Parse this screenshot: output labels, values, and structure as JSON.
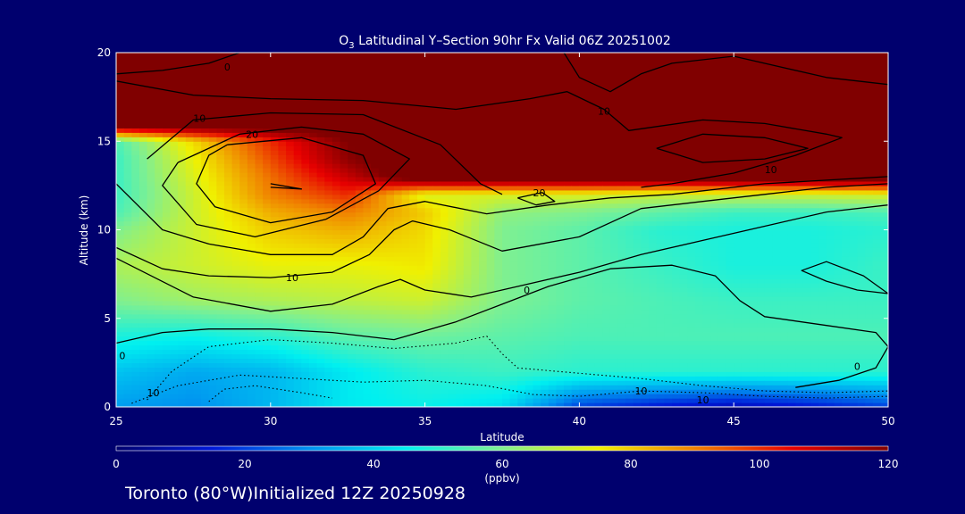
{
  "chart_data": {
    "type": "heatmap",
    "title_prefix": "O",
    "title_subscript": "3",
    "title_rest": " Latitudinal Y–Section 90hr  Fx Valid 06Z 20251002",
    "xlabel": "Latitude",
    "ylabel": "Altitude (km)",
    "xlim": [
      25,
      50
    ],
    "ylim": [
      0,
      20
    ],
    "x_ticks": [
      25,
      30,
      35,
      40,
      45,
      50
    ],
    "y_ticks": [
      0,
      5,
      10,
      15,
      20
    ],
    "grid": false,
    "colorbar": {
      "label": "(ppbv)",
      "range": [
        0,
        120
      ],
      "ticks": [
        0,
        20,
        40,
        60,
        80,
        100,
        120
      ],
      "colors": [
        "#00006e",
        "#0018d8",
        "#0090f0",
        "#00f0f0",
        "#80f090",
        "#f0f000",
        "#f08000",
        "#e80000",
        "#800000"
      ]
    },
    "field": {
      "x": [
        25,
        27.5,
        30,
        32.5,
        35,
        37.5,
        40,
        42.5,
        45,
        47.5,
        50
      ],
      "y": [
        0,
        2,
        4,
        6,
        8,
        10,
        11,
        12,
        13,
        14,
        15,
        16,
        18,
        20
      ],
      "z": [
        [
          32,
          30,
          36,
          44,
          46,
          42,
          20,
          14,
          10,
          14,
          20
        ],
        [
          38,
          34,
          36,
          44,
          50,
          52,
          50,
          50,
          50,
          50,
          50
        ],
        [
          48,
          46,
          50,
          56,
          58,
          56,
          54,
          54,
          54,
          54,
          54
        ],
        [
          60,
          64,
          66,
          68,
          70,
          60,
          56,
          54,
          52,
          52,
          52
        ],
        [
          66,
          70,
          74,
          74,
          76,
          60,
          56,
          52,
          48,
          48,
          52
        ],
        [
          60,
          70,
          80,
          84,
          78,
          60,
          56,
          50,
          48,
          48,
          50
        ],
        [
          54,
          70,
          84,
          90,
          80,
          62,
          60,
          56,
          52,
          52,
          54
        ],
        [
          52,
          70,
          90,
          100,
          72,
          72,
          72,
          70,
          70,
          70,
          72
        ],
        [
          52,
          72,
          92,
          110,
          130,
          130,
          130,
          130,
          130,
          130,
          130
        ],
        [
          52,
          74,
          96,
          118,
          130,
          130,
          130,
          130,
          130,
          130,
          130
        ],
        [
          54,
          78,
          100,
          120,
          130,
          130,
          130,
          130,
          130,
          130,
          130
        ],
        [
          130,
          130,
          130,
          130,
          130,
          130,
          130,
          130,
          130,
          130,
          130
        ],
        [
          130,
          130,
          130,
          130,
          130,
          130,
          130,
          130,
          130,
          130,
          130
        ],
        [
          130,
          130,
          130,
          130,
          130,
          130,
          130,
          130,
          130,
          130,
          130
        ]
      ]
    },
    "contours": [
      {
        "label": "20",
        "style": "solid",
        "points": [
          [
            30.0,
            12.4
          ],
          [
            31.0,
            12.3
          ],
          [
            30.0,
            12.6
          ]
        ]
      },
      {
        "label": "20",
        "style": "solid",
        "points": [
          [
            28.6,
            14.8
          ],
          [
            31.0,
            15.2
          ],
          [
            33.0,
            14.2
          ],
          [
            33.4,
            12.6
          ],
          [
            32.0,
            11.0
          ],
          [
            30.0,
            10.4
          ],
          [
            28.2,
            11.3
          ],
          [
            27.6,
            12.6
          ],
          [
            28.0,
            14.2
          ],
          [
            28.6,
            14.8
          ]
        ]
      },
      {
        "label": "20",
        "style": "solid",
        "points": [
          [
            38.0,
            11.8
          ],
          [
            38.6,
            11.4
          ],
          [
            39.2,
            11.6
          ],
          [
            38.8,
            12.1
          ],
          [
            38.0,
            11.8
          ]
        ]
      },
      {
        "label": "10",
        "style": "solid",
        "points": [
          [
            27.0,
            13.8
          ],
          [
            29.0,
            15.4
          ],
          [
            31.0,
            15.8
          ],
          [
            33.0,
            15.4
          ],
          [
            34.5,
            14.0
          ],
          [
            33.5,
            12.2
          ],
          [
            31.8,
            10.6
          ],
          [
            29.5,
            9.6
          ],
          [
            27.6,
            10.3
          ],
          [
            26.5,
            12.5
          ],
          [
            27.0,
            13.8
          ]
        ]
      },
      {
        "label": "10",
        "style": "solid",
        "points": [
          [
            26.0,
            14.0
          ],
          [
            27.5,
            16.2
          ],
          [
            30.0,
            16.6
          ],
          [
            33.0,
            16.5
          ],
          [
            35.5,
            14.8
          ],
          [
            36.8,
            12.6
          ],
          [
            37.5,
            12.0
          ]
        ]
      },
      {
        "label": "10",
        "style": "solid",
        "points": [
          [
            25.0,
            9.0
          ],
          [
            26.5,
            7.8
          ],
          [
            28.0,
            7.4
          ],
          [
            30.0,
            7.3
          ],
          [
            32.0,
            7.6
          ],
          [
            33.2,
            8.6
          ],
          [
            34.0,
            10.0
          ],
          [
            34.6,
            10.5
          ],
          [
            35.8,
            10.0
          ],
          [
            37.5,
            8.8
          ],
          [
            40.0,
            9.6
          ],
          [
            42.0,
            11.2
          ],
          [
            44.0,
            11.6
          ],
          [
            46.0,
            12.0
          ],
          [
            48.0,
            12.4
          ],
          [
            50.0,
            12.6
          ]
        ]
      },
      {
        "label": "10",
        "style": "solid",
        "points": [
          [
            25.0,
            8.4
          ],
          [
            27.5,
            6.2
          ],
          [
            30.0,
            5.4
          ],
          [
            32.0,
            5.8
          ],
          [
            33.5,
            6.8
          ],
          [
            34.2,
            7.2
          ],
          [
            35.0,
            6.6
          ],
          [
            36.5,
            6.2
          ],
          [
            38.0,
            6.8
          ],
          [
            40.0,
            7.6
          ],
          [
            42.0,
            8.6
          ],
          [
            44.0,
            9.4
          ],
          [
            46.0,
            10.2
          ],
          [
            48.0,
            11.0
          ],
          [
            50.0,
            11.4
          ]
        ]
      },
      {
        "label": "10",
        "style": "solid",
        "points": [
          [
            25.0,
            12.6
          ],
          [
            26.5,
            10.0
          ],
          [
            28.0,
            9.2
          ],
          [
            30.0,
            8.6
          ],
          [
            32.0,
            8.6
          ],
          [
            33.0,
            9.6
          ],
          [
            33.8,
            11.2
          ],
          [
            35.0,
            11.6
          ],
          [
            37.0,
            10.9
          ],
          [
            39.0,
            11.4
          ],
          [
            41.0,
            11.8
          ],
          [
            43.0,
            12.0
          ],
          [
            46.0,
            12.6
          ],
          [
            48.0,
            12.8
          ],
          [
            50.0,
            13.0
          ]
        ]
      },
      {
        "label": "10",
        "style": "solid",
        "points": [
          [
            42.5,
            14.6
          ],
          [
            44.0,
            15.4
          ],
          [
            46.0,
            15.2
          ],
          [
            47.4,
            14.6
          ],
          [
            46.0,
            14.0
          ],
          [
            44.0,
            13.8
          ],
          [
            42.5,
            14.6
          ]
        ]
      },
      {
        "label": "10",
        "style": "solid",
        "points": [
          [
            25.0,
            18.4
          ],
          [
            27.5,
            17.6
          ],
          [
            30.0,
            17.4
          ],
          [
            33.0,
            17.3
          ],
          [
            36.0,
            16.8
          ],
          [
            38.4,
            17.4
          ],
          [
            39.6,
            17.8
          ],
          [
            40.8,
            16.8
          ],
          [
            41.6,
            15.6
          ],
          [
            44.0,
            16.2
          ],
          [
            46.0,
            16.0
          ],
          [
            48.0,
            15.4
          ],
          [
            48.5,
            15.2
          ],
          [
            47.0,
            14.2
          ],
          [
            45.0,
            13.2
          ],
          [
            43.0,
            12.6
          ],
          [
            42.0,
            12.4
          ]
        ]
      },
      {
        "label": "0",
        "style": "solid",
        "points": [
          [
            25.0,
            18.8
          ],
          [
            26.5,
            19.0
          ],
          [
            28.0,
            19.4
          ],
          [
            29.0,
            20.0
          ]
        ]
      },
      {
        "label": "10",
        "style": "solid",
        "points": [
          [
            39.5,
            20.0
          ],
          [
            40.0,
            18.6
          ],
          [
            41.0,
            17.8
          ],
          [
            42.0,
            18.8
          ],
          [
            43.0,
            19.4
          ],
          [
            45.0,
            19.8
          ],
          [
            48.0,
            18.6
          ],
          [
            50.0,
            18.2
          ]
        ]
      },
      {
        "label": "0",
        "style": "solid",
        "points": [
          [
            25.0,
            3.6
          ],
          [
            26.5,
            4.2
          ],
          [
            28.0,
            4.4
          ],
          [
            30.0,
            4.4
          ],
          [
            32.0,
            4.2
          ],
          [
            34.0,
            3.8
          ],
          [
            36.0,
            4.8
          ],
          [
            37.5,
            5.8
          ],
          [
            39.0,
            6.8
          ],
          [
            41.0,
            7.8
          ],
          [
            43.0,
            8.0
          ],
          [
            44.4,
            7.4
          ],
          [
            45.2,
            6.0
          ],
          [
            46.0,
            5.1
          ],
          [
            48.0,
            4.6
          ],
          [
            49.6,
            4.2
          ],
          [
            50.0,
            3.4
          ],
          [
            49.6,
            2.2
          ],
          [
            48.4,
            1.5
          ],
          [
            47.0,
            1.1
          ]
        ]
      },
      {
        "label": "0",
        "style": "solid",
        "points": [
          [
            50.0,
            6.4
          ],
          [
            49.2,
            7.4
          ],
          [
            48.0,
            8.2
          ],
          [
            47.2,
            7.7
          ],
          [
            48.0,
            7.1
          ],
          [
            49.0,
            6.6
          ],
          [
            50.0,
            6.4
          ]
        ]
      },
      {
        "label": "-10",
        "style": "dotted",
        "points": [
          [
            25.5,
            0.2
          ],
          [
            27.0,
            1.2
          ],
          [
            29.0,
            1.8
          ],
          [
            31.0,
            1.6
          ],
          [
            33.0,
            1.4
          ],
          [
            35.0,
            1.5
          ],
          [
            37.0,
            1.2
          ],
          [
            38.5,
            0.7
          ],
          [
            40.0,
            0.6
          ],
          [
            42.0,
            0.9
          ],
          [
            44.0,
            0.8
          ],
          [
            46.0,
            0.6
          ],
          [
            48.0,
            0.5
          ],
          [
            50.0,
            0.6
          ]
        ]
      },
      {
        "label": "",
        "style": "dotted",
        "points": [
          [
            26.0,
            0.4
          ],
          [
            26.8,
            2.0
          ],
          [
            28.0,
            3.4
          ],
          [
            30.0,
            3.8
          ],
          [
            32.0,
            3.6
          ],
          [
            34.0,
            3.3
          ],
          [
            36.0,
            3.6
          ],
          [
            37.0,
            4.0
          ],
          [
            37.5,
            3.0
          ],
          [
            38.0,
            2.2
          ],
          [
            40.0,
            1.9
          ],
          [
            42.0,
            1.6
          ],
          [
            44.0,
            1.2
          ],
          [
            46.0,
            0.9
          ],
          [
            48.0,
            0.8
          ],
          [
            50.0,
            0.9
          ]
        ]
      },
      {
        "label": "",
        "style": "dotted",
        "points": [
          [
            28.0,
            0.3
          ],
          [
            28.5,
            1.0
          ],
          [
            29.5,
            1.2
          ],
          [
            31.0,
            0.8
          ],
          [
            32.0,
            0.5
          ]
        ]
      }
    ],
    "contour_labels": [
      {
        "text": "0",
        "x": 28.6,
        "y": 19.2
      },
      {
        "text": "10",
        "x": 27.7,
        "y": 16.3
      },
      {
        "text": "20",
        "x": 29.4,
        "y": 15.4
      },
      {
        "text": "10",
        "x": 40.8,
        "y": 16.7
      },
      {
        "text": "10",
        "x": 46.2,
        "y": 13.4
      },
      {
        "text": "20",
        "x": 38.7,
        "y": 12.1
      },
      {
        "text": "10",
        "x": 30.7,
        "y": 7.3
      },
      {
        "text": "0",
        "x": 38.3,
        "y": 6.6
      },
      {
        "text": "0",
        "x": 25.2,
        "y": 2.9
      },
      {
        "text": "10",
        "x": 26.2,
        "y": 0.8
      },
      {
        "text": "10",
        "x": 42.0,
        "y": 0.9
      },
      {
        "text": "10",
        "x": 44.0,
        "y": 0.4
      },
      {
        "text": "0",
        "x": 49.0,
        "y": 2.3
      }
    ]
  },
  "footer": {
    "caption": "Toronto (80°W)Initialized 12Z 20250928"
  }
}
